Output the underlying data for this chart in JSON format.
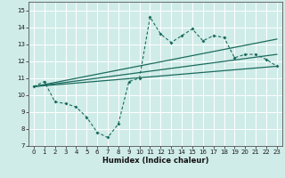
{
  "xlabel": "Humidex (Indice chaleur)",
  "bg_color": "#d0ece8",
  "grid_color": "#ffffff",
  "line_color": "#1a6b5e",
  "xlim": [
    -0.5,
    23.5
  ],
  "ylim": [
    7,
    15.5
  ],
  "xticks": [
    0,
    1,
    2,
    3,
    4,
    5,
    6,
    7,
    8,
    9,
    10,
    11,
    12,
    13,
    14,
    15,
    16,
    17,
    18,
    19,
    20,
    21,
    22,
    23
  ],
  "yticks": [
    7,
    8,
    9,
    10,
    11,
    12,
    13,
    14,
    15
  ],
  "line1_x": [
    0,
    1,
    2,
    3,
    4,
    5,
    6,
    7,
    8,
    9,
    10,
    11,
    12,
    13,
    14,
    15,
    16,
    17,
    18,
    19,
    20,
    21,
    22,
    23
  ],
  "line1_y": [
    10.5,
    10.8,
    9.6,
    9.5,
    9.3,
    8.7,
    7.8,
    7.5,
    8.3,
    10.8,
    11.0,
    14.6,
    13.6,
    13.1,
    13.5,
    13.9,
    13.2,
    13.5,
    13.4,
    12.2,
    12.4,
    12.4,
    12.1,
    11.7
  ],
  "line2_x": [
    0,
    23
  ],
  "line2_y": [
    10.5,
    11.7
  ],
  "line3_x": [
    0,
    23
  ],
  "line3_y": [
    10.5,
    12.4
  ],
  "line4_x": [
    0,
    23
  ],
  "line4_y": [
    10.5,
    13.3
  ],
  "xlabel_fontsize": 6,
  "tick_fontsize": 5
}
